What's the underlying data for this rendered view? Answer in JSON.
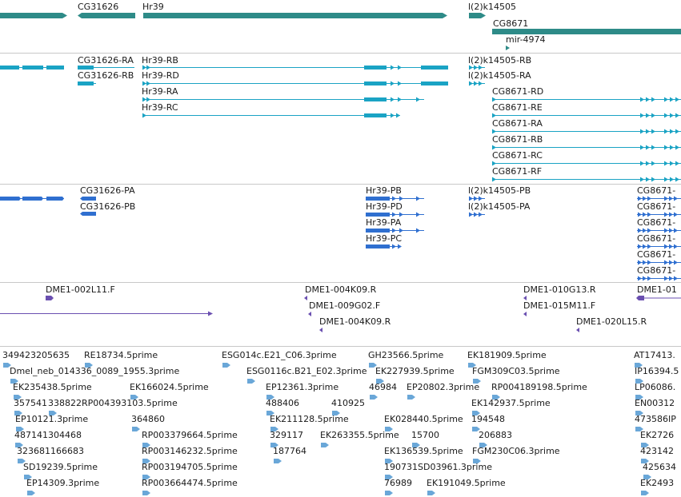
{
  "colors": {
    "gene": "#2e8b88",
    "transcript": "#1aa3c4",
    "protein": "#2f6fd0",
    "clone": "#6a4fb0",
    "est": "#6aa7d8",
    "separator": "#c8c8c8"
  },
  "tracks": {
    "genes": {
      "cg31626": "CG31626",
      "hr39": "Hr39",
      "l2k14505": "l(2)k14505",
      "cg8671": "CG8671",
      "mir4974": "mir-4974"
    },
    "transcripts": {
      "cg31626_ra": "CG31626-RA",
      "hr39_rb": "Hr39-RB",
      "cg31626_rb": "CG31626-RB",
      "hr39_rd": "Hr39-RD",
      "hr39_ra": "Hr39-RA",
      "hr39_rc": "Hr39-RC",
      "l2_rb": "l(2)k14505-RB",
      "l2_ra": "l(2)k14505-RA",
      "cg8671_rd": "CG8671-RD",
      "cg8671_re": "CG8671-RE",
      "cg8671_ra": "CG8671-RA",
      "cg8671_rb": "CG8671-RB",
      "cg8671_rc": "CG8671-RC",
      "cg8671_rf": "CG8671-RF"
    },
    "proteins": {
      "cg31626_pa": "CG31626-PA",
      "cg31626_pb": "CG31626-PB",
      "hr39_pb": "Hr39-PB",
      "hr39_pd": "Hr39-PD",
      "hr39_pa": "Hr39-PA",
      "hr39_pc": "Hr39-PC",
      "l2_pb": "l(2)k14505-PB",
      "l2_pa": "l(2)k14505-PA",
      "cg8671_p1": "CG8671-",
      "cg8671_p2": "CG8671-",
      "cg8671_p3": "CG8671-",
      "cg8671_p4": "CG8671-",
      "cg8671_p5": "CG8671-",
      "cg8671_p6": "CG8671-"
    },
    "clones": {
      "c1": "DME1-002L11.F",
      "c2": "DME1-004K09.R",
      "c3": "DME1-009G02.F",
      "c4": "DME1-004K09.R",
      "c5": "DME1-010G13.R",
      "c6": "DME1-015M11.F",
      "c7": "DME1-020L15.R",
      "c8": "DME1-01"
    },
    "ests": {
      "e1": "349423205635",
      "e2": "RE18734.5prime",
      "e3": "ESG014c.E21_C06.3prime",
      "e4": "GH23566.5prime",
      "e5": "EK181909.5prime",
      "e6": "AT17413.",
      "e7": "Dmel_neb_014336_0089_1955.3prime",
      "e8": "ESG0116c.B21_E02.3prime",
      "e9": "EK227939.5prime",
      "e10": "FGM309C03.5prime",
      "e11": "IP16394.5",
      "e12": "EK235438.5prime",
      "e13": "EK166024.5prime",
      "e14": "EP12361.3prime",
      "e15": "46984",
      "e16": "EP20802.3prime",
      "e17": "RP004189198.5prime",
      "e18": "LP06086.",
      "e19": "357541",
      "e20": "338822RP004393103.5prime",
      "e21": "488406",
      "e22": "410925",
      "e23": "EK142937.5prime",
      "e24": "EN00312",
      "e25": "EP10121.3prime",
      "e26": "364860",
      "e27": "EK211128.5prime",
      "e28": "EK028440.5prime",
      "e29": "194548",
      "e30": "473586IP",
      "e31": "487141304468",
      "e32": "RP003379664.5prime",
      "e33": "329117",
      "e34": "EK263355.5prime",
      "e35": "15700",
      "e36": "206883",
      "e37": "EK2726",
      "e38": "323681166683",
      "e39": "RP003146232.5prime",
      "e40": "187764",
      "e41": "EK136539.5prime",
      "e42": "FGM230C06.3prime",
      "e43": "423142",
      "e44": "SD19239.5prime",
      "e45": "RP003194705.5prime",
      "e46": "190731SD03961.3prime",
      "e47": "425634",
      "e48": "EP14309.3prime",
      "e49": "RP003664474.5prime",
      "e50": "76989",
      "e51": "EK191049.5prime",
      "e52": "EK2493"
    }
  }
}
